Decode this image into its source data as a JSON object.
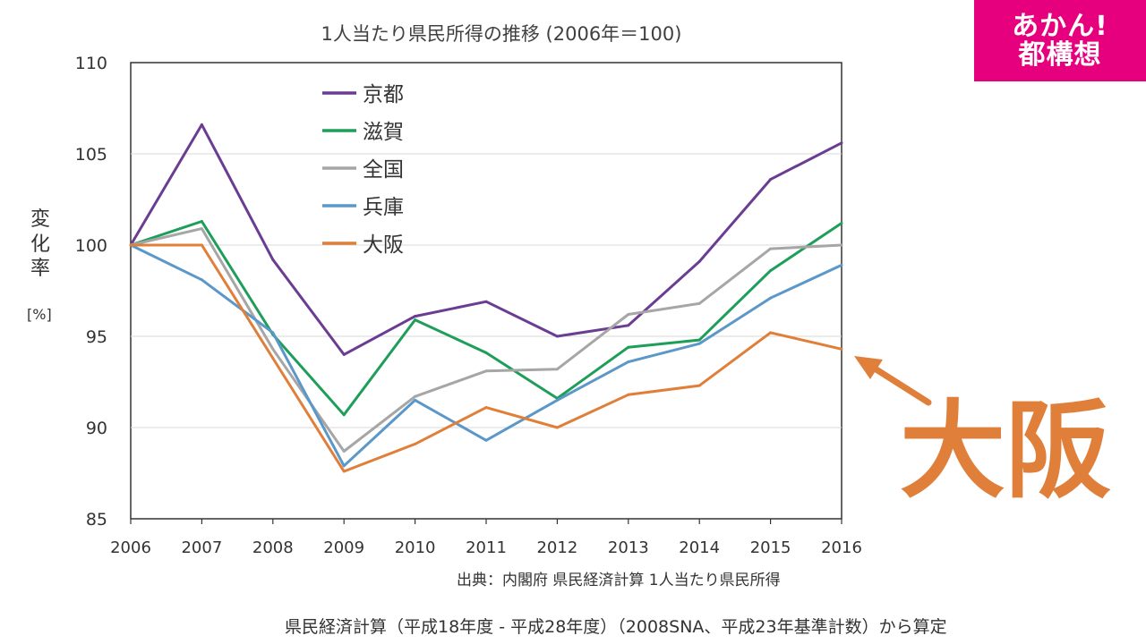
{
  "badge": {
    "line1": "あかん!",
    "line2": "都構想"
  },
  "footnote": "県民経済計算（平成18年度 - 平成28年度）（2008SNA、平成23年基準計数）から算定",
  "highlight": {
    "label": "大阪",
    "color": "#e07f3a"
  },
  "chart_data": {
    "type": "line",
    "title": "1人当たり県民所得の推移 (2006年＝100)",
    "ylabel": "変化率",
    "yunit": "[%]",
    "source": "出典：内閣府 県民経済計算 1人当たり県民所得",
    "x": [
      2006,
      2007,
      2008,
      2009,
      2010,
      2011,
      2012,
      2013,
      2014,
      2015,
      2016
    ],
    "ylim": [
      85,
      110
    ],
    "yticks": [
      85,
      90,
      95,
      100,
      105,
      110
    ],
    "grid": true,
    "legend_position": "top-left",
    "series": [
      {
        "name": "京都",
        "color": "#6a3d93",
        "values": [
          100,
          106.6,
          99.2,
          94.0,
          96.1,
          96.9,
          95.0,
          95.6,
          99.1,
          103.6,
          105.6
        ]
      },
      {
        "name": "滋賀",
        "color": "#1f9e5a",
        "values": [
          100,
          101.3,
          95.1,
          90.7,
          95.9,
          94.1,
          91.6,
          94.4,
          94.8,
          98.6,
          101.2
        ]
      },
      {
        "name": "全国",
        "color": "#a6a6a6",
        "values": [
          100,
          100.9,
          94.3,
          88.7,
          91.7,
          93.1,
          93.2,
          96.2,
          96.8,
          99.8,
          100.0
        ]
      },
      {
        "name": "兵庫",
        "color": "#5b97c9",
        "values": [
          100,
          98.1,
          95.2,
          87.9,
          91.5,
          89.3,
          91.5,
          93.6,
          94.6,
          97.1,
          98.9
        ]
      },
      {
        "name": "大阪",
        "color": "#e07f3a",
        "values": [
          100,
          100.0,
          93.8,
          87.6,
          89.1,
          91.1,
          90.0,
          91.8,
          92.3,
          95.2,
          94.3
        ]
      }
    ]
  }
}
